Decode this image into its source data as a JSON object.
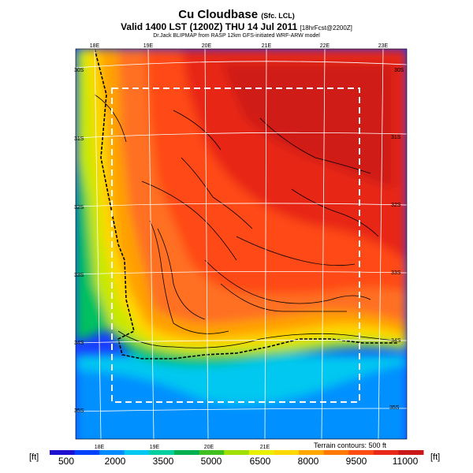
{
  "header": {
    "title": "Cu Cloudbase",
    "title_suffix": "(Sfc. LCL)",
    "valid_line": "Valid 1400 LST (1200Z) THU 14 Jul 2011",
    "fcst": "[18hrFcst@2200Z]",
    "credit": "Dr.Jack BLIPMAP from RASP 12km GFS-initiated WRF-ARW model"
  },
  "map": {
    "lon_labels_top": [
      "18E",
      "19E",
      "20E",
      "21E",
      "22E",
      "23E"
    ],
    "lon_labels_bottom": [
      "18E",
      "19E",
      "20E",
      "21E"
    ],
    "lat_labels_left": [
      "30S",
      "31S",
      "32S",
      "33S",
      "34S",
      "35S"
    ],
    "lat_labels_right": [
      "30S",
      "31S",
      "32S",
      "33S",
      "34S",
      "35S"
    ],
    "terrain_note": "Terrain contours: 500 ft"
  },
  "colorbar": {
    "unit_left": "[ft]",
    "unit_right": "[ft]",
    "labels": [
      "500",
      "2000",
      "3500",
      "5000",
      "6500",
      "8000",
      "9500",
      "11000"
    ],
    "colors": [
      "#1e10d0",
      "#0040ff",
      "#008cff",
      "#00c8f0",
      "#00d0a0",
      "#00b050",
      "#40c020",
      "#a0e000",
      "#e8f000",
      "#ffd800",
      "#ffa800",
      "#ff7800",
      "#ff4c10",
      "#e82818",
      "#c81818"
    ]
  }
}
